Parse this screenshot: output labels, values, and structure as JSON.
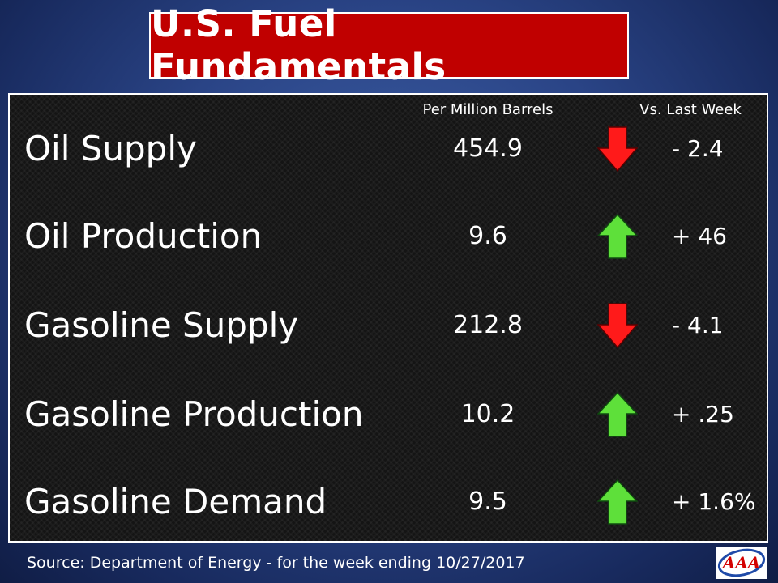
{
  "title": "U.S. Fuel Fundamentals",
  "headers": {
    "units": "Per Million Barrels",
    "change": "Vs. Last Week"
  },
  "rows": [
    {
      "label": "Oil Supply",
      "value": "454.9",
      "direction": "down",
      "change": "- 2.4"
    },
    {
      "label": "Oil Production",
      "value": "9.6",
      "direction": "up",
      "change": "+ 46"
    },
    {
      "label": "Gasoline Supply",
      "value": "212.8",
      "direction": "down",
      "change": "- 4.1"
    },
    {
      "label": "Gasoline Production",
      "value": "10.2",
      "direction": "up",
      "change": "+ .25"
    },
    {
      "label": "Gasoline Demand",
      "value": "9.5",
      "direction": "up",
      "change": "+ 1.6%"
    }
  ],
  "source": "Source:  Department of Energy - for the week ending 10/27/2017",
  "logo": {
    "text": "AAA",
    "icon": "aaa-logo-icon"
  },
  "colors": {
    "title_bg": "#c00000",
    "up_arrow": "#5ee03a",
    "down_arrow": "#ff1a1a"
  }
}
